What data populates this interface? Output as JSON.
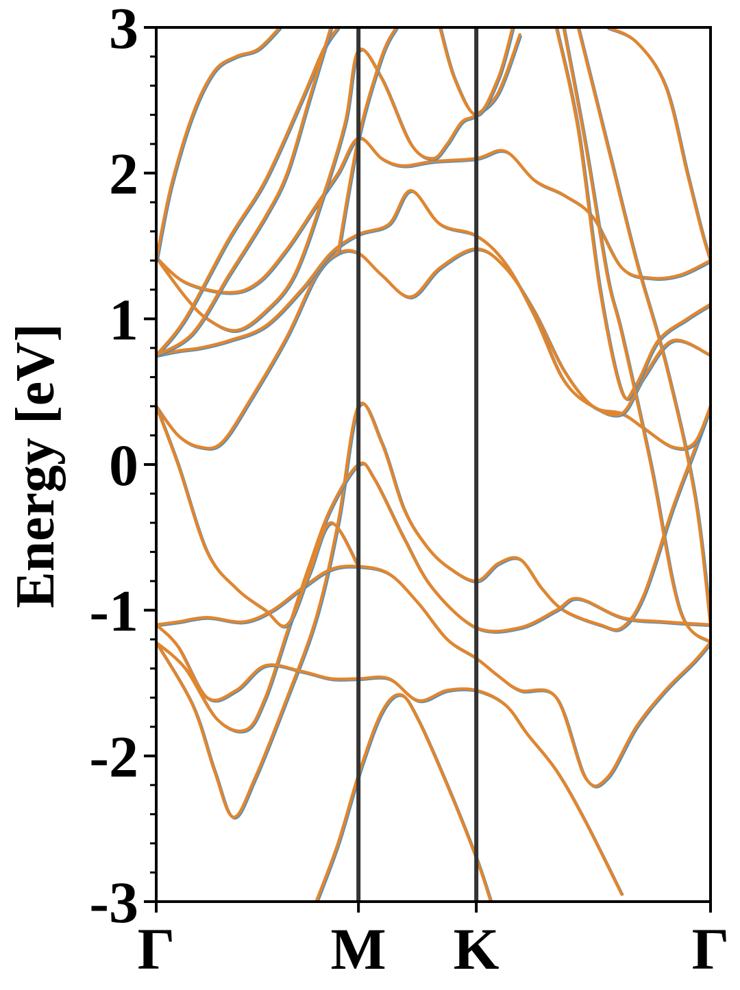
{
  "chart_data": {
    "type": "line",
    "title": "",
    "xlabel": "",
    "ylabel": "Energy [eV]",
    "ylim": [
      -3,
      3
    ],
    "xlim": [
      0,
      3.81
    ],
    "y_ticks": [
      {
        "value": 3,
        "label": "3"
      },
      {
        "value": 2,
        "label": "2"
      },
      {
        "value": 1,
        "label": "1"
      },
      {
        "value": 0,
        "label": "0"
      },
      {
        "value": -1,
        "label": "-1"
      },
      {
        "value": -2,
        "label": "-2"
      },
      {
        "value": -3,
        "label": "-3"
      }
    ],
    "y_minor_step": 0.2,
    "x_ticks": [
      {
        "value": 0,
        "label": "Γ"
      },
      {
        "value": 1.39,
        "label": "M"
      },
      {
        "value": 2.2,
        "label": "K"
      },
      {
        "value": 3.81,
        "label": "Γ"
      }
    ],
    "vlines": [
      1.39,
      2.2
    ],
    "grid": false,
    "legend": "none",
    "colors": {
      "band": "#e0862f",
      "band_shadow": "#4a8fc4",
      "divider": "#333333"
    },
    "series": [
      {
        "values": [
          [
            0,
            -1.22
          ],
          [
            0.25,
            -1.65
          ],
          [
            0.4,
            -2.1
          ],
          [
            0.53,
            -2.42
          ],
          [
            0.68,
            -2.15
          ],
          [
            0.9,
            -1.6
          ],
          [
            1.1,
            -1.05
          ],
          [
            1.25,
            -0.4
          ],
          [
            1.39,
            0.4
          ],
          [
            1.55,
            0.15
          ],
          [
            1.7,
            -0.3
          ],
          [
            1.85,
            -0.55
          ],
          [
            2.0,
            -0.7
          ],
          [
            2.2,
            -0.8
          ],
          [
            2.35,
            -0.68
          ],
          [
            2.5,
            -0.65
          ],
          [
            2.65,
            -0.85
          ],
          [
            2.8,
            -1.0
          ],
          [
            3.05,
            -1.1
          ],
          [
            3.2,
            -1.12
          ],
          [
            3.35,
            -0.9
          ],
          [
            3.55,
            -0.3
          ],
          [
            3.7,
            0.1
          ],
          [
            3.81,
            0.4
          ]
        ]
      },
      {
        "values": [
          [
            0,
            -1.22
          ],
          [
            0.2,
            -1.4
          ],
          [
            0.42,
            -1.75
          ],
          [
            0.62,
            -1.82
          ],
          [
            0.75,
            -1.6
          ],
          [
            0.9,
            -1.15
          ],
          [
            1.05,
            -0.7
          ],
          [
            1.2,
            -0.3
          ],
          [
            1.39,
            0.0
          ],
          [
            1.5,
            -0.1
          ],
          [
            1.7,
            -0.5
          ],
          [
            1.9,
            -0.85
          ],
          [
            2.2,
            -1.12
          ],
          [
            2.5,
            -1.12
          ],
          [
            2.75,
            -1.0
          ],
          [
            2.9,
            -0.92
          ],
          [
            3.2,
            -1.05
          ],
          [
            3.5,
            -1.08
          ],
          [
            3.81,
            -1.1
          ]
        ]
      },
      {
        "values": [
          [
            0,
            -1.1
          ],
          [
            0.15,
            -1.08
          ],
          [
            0.35,
            -1.05
          ],
          [
            0.6,
            -1.08
          ],
          [
            0.8,
            -1.0
          ],
          [
            1.0,
            -0.85
          ],
          [
            1.2,
            -0.72
          ],
          [
            1.39,
            -0.7
          ],
          [
            1.6,
            -0.75
          ],
          [
            1.8,
            -0.95
          ],
          [
            2.0,
            -1.2
          ],
          [
            2.2,
            -1.33
          ],
          [
            2.35,
            -1.45
          ],
          [
            2.5,
            -1.55
          ],
          [
            2.75,
            -1.6
          ],
          [
            2.95,
            -2.15
          ],
          [
            3.1,
            -2.15
          ],
          [
            3.3,
            -1.8
          ],
          [
            3.5,
            -1.55
          ],
          [
            3.7,
            -1.35
          ],
          [
            3.81,
            -1.22
          ]
        ]
      },
      {
        "values": [
          [
            0,
            -1.1
          ],
          [
            0.15,
            -1.25
          ],
          [
            0.35,
            -1.6
          ],
          [
            0.55,
            -1.55
          ],
          [
            0.75,
            -1.38
          ],
          [
            1.0,
            -1.42
          ],
          [
            1.2,
            -1.47
          ],
          [
            1.39,
            -1.47
          ],
          [
            1.6,
            -1.47
          ],
          [
            1.8,
            -1.62
          ],
          [
            2.0,
            -1.55
          ],
          [
            2.2,
            -1.55
          ],
          [
            2.4,
            -1.65
          ],
          [
            2.55,
            -1.85
          ],
          [
            2.75,
            -2.1
          ],
          [
            2.95,
            -2.45
          ],
          [
            3.2,
            -2.95
          ]
        ]
      },
      {
        "values": [
          [
            0,
            0.4
          ],
          [
            0.15,
            0.2
          ],
          [
            0.3,
            0.12
          ],
          [
            0.45,
            0.15
          ],
          [
            0.65,
            0.45
          ],
          [
            0.9,
            0.88
          ],
          [
            1.1,
            1.3
          ],
          [
            1.25,
            1.45
          ],
          [
            1.39,
            1.45
          ],
          [
            1.55,
            1.3
          ],
          [
            1.75,
            1.15
          ],
          [
            1.95,
            1.35
          ],
          [
            2.2,
            1.48
          ],
          [
            2.4,
            1.35
          ],
          [
            2.6,
            1.05
          ],
          [
            2.8,
            0.65
          ],
          [
            3.0,
            0.4
          ],
          [
            3.2,
            0.35
          ],
          [
            3.35,
            0.25
          ],
          [
            3.55,
            0.12
          ],
          [
            3.7,
            0.15
          ],
          [
            3.81,
            0.4
          ]
        ]
      },
      {
        "values": [
          [
            0,
            0.4
          ],
          [
            0.15,
            0.0
          ],
          [
            0.35,
            -0.6
          ],
          [
            0.55,
            -0.85
          ],
          [
            0.75,
            -1.0
          ],
          [
            0.9,
            -1.1
          ],
          [
            1.05,
            -0.75
          ],
          [
            1.2,
            -0.4
          ],
          [
            1.39,
            -0.7
          ]
        ]
      },
      {
        "values": [
          [
            0,
            0.75
          ],
          [
            0.15,
            0.78
          ],
          [
            0.3,
            0.8
          ],
          [
            0.5,
            0.85
          ],
          [
            0.75,
            0.95
          ],
          [
            1.0,
            1.2
          ],
          [
            1.2,
            1.45
          ],
          [
            1.39,
            1.58
          ],
          [
            1.6,
            1.65
          ],
          [
            1.75,
            1.88
          ],
          [
            1.95,
            1.65
          ],
          [
            2.2,
            1.57
          ],
          [
            2.4,
            1.38
          ],
          [
            2.6,
            1.02
          ],
          [
            2.8,
            0.58
          ],
          [
            3.0,
            0.4
          ],
          [
            3.2,
            0.35
          ],
          [
            3.35,
            0.6
          ],
          [
            3.55,
            0.85
          ],
          [
            3.81,
            0.75
          ]
        ]
      },
      {
        "values": [
          [
            0,
            0.75
          ],
          [
            0.2,
            1.0
          ],
          [
            0.5,
            1.55
          ],
          [
            0.75,
            1.95
          ],
          [
            1.0,
            2.5
          ],
          [
            1.15,
            2.85
          ],
          [
            1.25,
            3.0
          ]
        ]
      },
      {
        "values": [
          [
            0,
            1.42
          ],
          [
            0.2,
            1.25
          ],
          [
            0.5,
            1.18
          ],
          [
            0.7,
            1.25
          ],
          [
            0.9,
            1.48
          ],
          [
            1.1,
            1.78
          ],
          [
            1.25,
            2.0
          ],
          [
            1.39,
            2.24
          ],
          [
            1.55,
            2.1
          ],
          [
            1.7,
            2.05
          ],
          [
            1.9,
            2.08
          ],
          [
            2.2,
            2.1
          ],
          [
            2.4,
            2.15
          ],
          [
            2.6,
            1.95
          ],
          [
            2.8,
            1.85
          ],
          [
            3.0,
            1.7
          ],
          [
            3.2,
            1.35
          ],
          [
            3.4,
            1.28
          ],
          [
            3.6,
            1.3
          ],
          [
            3.81,
            1.4
          ]
        ]
      },
      {
        "values": [
          [
            0,
            1.42
          ],
          [
            0.2,
            1.15
          ],
          [
            0.35,
            1.0
          ],
          [
            0.55,
            0.92
          ],
          [
            0.75,
            1.05
          ],
          [
            0.95,
            1.3
          ],
          [
            1.15,
            1.85
          ],
          [
            1.3,
            2.35
          ],
          [
            1.39,
            2.84
          ],
          [
            1.55,
            2.65
          ],
          [
            1.75,
            2.2
          ],
          [
            1.9,
            2.1
          ],
          [
            2.0,
            2.2
          ],
          [
            2.1,
            2.35
          ],
          [
            2.2,
            2.4
          ],
          [
            2.35,
            2.55
          ],
          [
            2.5,
            2.95
          ]
        ]
      },
      {
        "values": [
          [
            0,
            0.75
          ],
          [
            0.25,
            0.9
          ],
          [
            0.5,
            1.3
          ],
          [
            0.75,
            1.7
          ],
          [
            0.9,
            2.0
          ],
          [
            1.05,
            2.5
          ],
          [
            1.2,
            3.0
          ]
        ]
      },
      {
        "values": [
          [
            1.25,
            1.45
          ],
          [
            1.39,
            2.24
          ],
          [
            1.55,
            2.8
          ],
          [
            1.65,
            3.0
          ]
        ]
      },
      {
        "values": [
          [
            0,
            1.4
          ],
          [
            0.1,
            1.9
          ],
          [
            0.25,
            2.4
          ],
          [
            0.4,
            2.7
          ],
          [
            0.55,
            2.8
          ],
          [
            0.7,
            2.85
          ],
          [
            0.85,
            3.0
          ]
        ]
      },
      {
        "values": [
          [
            1.95,
            3.0
          ],
          [
            2.05,
            2.65
          ],
          [
            2.2,
            2.4
          ],
          [
            2.35,
            2.65
          ],
          [
            2.45,
            3.0
          ]
        ]
      },
      {
        "values": [
          [
            2.75,
            3.0
          ],
          [
            2.9,
            2.3
          ],
          [
            3.05,
            1.2
          ],
          [
            3.2,
            0.5
          ],
          [
            3.3,
            0.55
          ],
          [
            3.45,
            0.85
          ],
          [
            3.65,
            1.0
          ],
          [
            3.81,
            1.1
          ]
        ]
      },
      {
        "values": [
          [
            2.8,
            3.0
          ],
          [
            2.95,
            2.2
          ],
          [
            3.1,
            1.3
          ],
          [
            3.2,
            0.9
          ],
          [
            3.4,
            0.0
          ],
          [
            3.6,
            -1.0
          ],
          [
            3.81,
            -1.22
          ]
        ]
      },
      {
        "values": [
          [
            2.9,
            3.0
          ],
          [
            3.1,
            2.2
          ],
          [
            3.3,
            1.4
          ],
          [
            3.5,
            0.7
          ],
          [
            3.7,
            -0.2
          ],
          [
            3.81,
            -1.1
          ]
        ]
      },
      {
        "values": [
          [
            3.1,
            3.0
          ],
          [
            3.3,
            2.9
          ],
          [
            3.5,
            2.6
          ],
          [
            3.65,
            2.0
          ],
          [
            3.75,
            1.6
          ],
          [
            3.81,
            1.4
          ]
        ]
      },
      {
        "values": [
          [
            1.1,
            -3.0
          ],
          [
            1.25,
            -2.6
          ],
          [
            1.4,
            -2.1
          ],
          [
            1.55,
            -1.7
          ],
          [
            1.68,
            -1.58
          ],
          [
            1.8,
            -1.75
          ],
          [
            2.0,
            -2.2
          ],
          [
            2.2,
            -2.7
          ],
          [
            2.3,
            -3.0
          ]
        ]
      }
    ]
  }
}
